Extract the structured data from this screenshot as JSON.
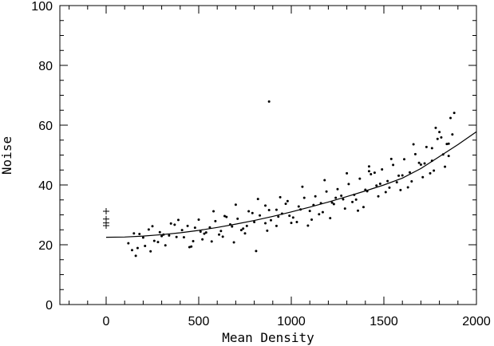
{
  "chart_data": {
    "type": "scatter",
    "title": "",
    "xlabel": "Mean Density",
    "ylabel": "Noise",
    "xlim": [
      -250,
      2000
    ],
    "ylim": [
      0,
      100
    ],
    "xticks": [
      0,
      500,
      1000,
      1500,
      2000
    ],
    "yticks": [
      0,
      20,
      40,
      60,
      80,
      100
    ],
    "grid": false,
    "legend": "none",
    "series": [
      {
        "kind": "points",
        "marker": "dot",
        "color": "#000000",
        "x": [
          120,
          150,
          170,
          200,
          230,
          260,
          290,
          320,
          350,
          380,
          410,
          440,
          470,
          500,
          530,
          560,
          590,
          620,
          650,
          680,
          710,
          740,
          770,
          800,
          830,
          860,
          890,
          920,
          950,
          980,
          1010,
          1040,
          1070,
          1100,
          1130,
          1160,
          1190,
          1220,
          1250,
          1280,
          1310,
          1340,
          1370,
          1400,
          1430,
          1460,
          1490,
          1520,
          1550,
          1580,
          1610,
          1640,
          1670,
          1700,
          1730,
          1760,
          1790,
          1820,
          1850,
          1870,
          140,
          210,
          280,
          340,
          420,
          480,
          540,
          610,
          670,
          730,
          790,
          860,
          920,
          990,
          1050,
          1110,
          1170,
          1230,
          1290,
          1350,
          1410,
          1470,
          1530,
          1590,
          1650,
          1710,
          1770,
          1830,
          1850,
          180,
          250,
          310,
          390,
          460,
          520,
          580,
          640,
          700,
          760,
          820,
          880,
          940,
          1000,
          1060,
          1120,
          1180,
          1240,
          1300,
          1360,
          1420,
          1480,
          1540,
          1600,
          1660,
          1720,
          1780,
          1840,
          880,
          1860,
          1880,
          1420,
          1760,
          1800,
          160,
          240,
          300,
          370,
          450,
          510,
          570,
          630,
          690,
          750,
          810,
          870,
          930,
          970,
          1030,
          1090,
          1150,
          1210,
          1270,
          1330,
          1390,
          1450,
          1510,
          1570,
          1630,
          1690,
          1750,
          1810
        ],
        "y": [
          20.5,
          23.8,
          18.9,
          22.4,
          25.1,
          21.3,
          24.2,
          19.8,
          27.1,
          22.6,
          24.9,
          26.3,
          21.2,
          28.4,
          23.7,
          25.8,
          27.9,
          24.6,
          29.3,
          26.1,
          28.7,
          25.4,
          31.2,
          27.6,
          29.8,
          33.1,
          28.2,
          31.7,
          30.4,
          34.6,
          29.1,
          32.8,
          35.7,
          31.3,
          36.2,
          33.9,
          37.8,
          34.1,
          38.6,
          35.2,
          40.3,
          36.7,
          42.1,
          38.4,
          43.6,
          39.8,
          45.2,
          41.3,
          46.7,
          43.1,
          48.6,
          44.2,
          50.3,
          46.8,
          52.7,
          48.1,
          55.4,
          50.2,
          53.8,
          56.9,
          18.2,
          19.6,
          20.9,
          23.1,
          22.5,
          25.7,
          24.1,
          23.4,
          26.8,
          24.9,
          30.6,
          27.2,
          26.3,
          29.7,
          31.8,
          28.4,
          30.9,
          33.6,
          32.1,
          35.1,
          37.9,
          36.2,
          39.1,
          38.3,
          41.2,
          42.6,
          44.8,
          46.1,
          49.7,
          23.6,
          26.2,
          23.4,
          28.3,
          19.4,
          21.8,
          31.2,
          29.6,
          33.4,
          26.3,
          35.3,
          31.6,
          35.9,
          27.3,
          39.4,
          33.3,
          41.6,
          35.7,
          43.9,
          31.4,
          46.2,
          40.4,
          48.7,
          43.2,
          53.6,
          47.2,
          59.1,
          53.7,
          67.9,
          62.4,
          64.1,
          44.6,
          52.3,
          57.7,
          16.3,
          17.8,
          22.9,
          26.7,
          19.2,
          24.4,
          21.1,
          22.7,
          20.8,
          23.8,
          17.9,
          24.7,
          29.4,
          33.7,
          27.6,
          26.4,
          30.2,
          28.9,
          36.4,
          34.3,
          32.6,
          44.1,
          37.6,
          40.9,
          39.2,
          47.4,
          43.9,
          55.9
        ]
      },
      {
        "kind": "crosses",
        "marker": "plus",
        "color": "#000000",
        "x": [
          0,
          0,
          0,
          0
        ],
        "y": [
          31.2,
          28.6,
          27.3,
          26.4
        ]
      },
      {
        "kind": "fit-line",
        "color": "#000000",
        "x": [
          0,
          100,
          200,
          300,
          400,
          500,
          600,
          700,
          800,
          900,
          1000,
          1100,
          1200,
          1300,
          1400,
          1500,
          1600,
          1700,
          1800,
          1900,
          2000
        ],
        "y": [
          22.5,
          22.6,
          22.9,
          23.4,
          24.0,
          24.8,
          25.8,
          26.9,
          28.1,
          29.5,
          31.0,
          32.6,
          34.3,
          36.1,
          38.0,
          40.0,
          42.3,
          45.5,
          49.5,
          53.5,
          57.8
        ]
      }
    ]
  }
}
